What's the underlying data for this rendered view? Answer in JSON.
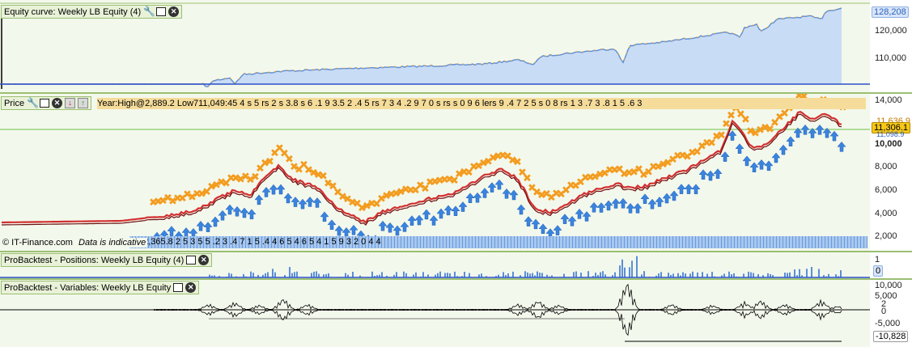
{
  "colors": {
    "pane_bg": "#f3f8ec",
    "equity_fill": "#c9dcf5",
    "equity_line": "#5b8ed8",
    "equity_accent": "#f0a030",
    "price_line_dark": "#6b1010",
    "price_line_red": "#d23030",
    "sell_marker": "#f39c1f",
    "buy_marker": "#3a84e0",
    "positions_bar": "#5b8ed8",
    "frame_green": "#9bbf72"
  },
  "equity_pane": {
    "title": "Equity curve: Weekly LB Equity (4)",
    "icons": [
      "wrench-icon",
      "maximize-icon",
      "close-icon"
    ],
    "last_value": "128,208",
    "ticks": [
      "120,000",
      "110,000"
    ]
  },
  "price_pane": {
    "title": "Price",
    "icons": [
      "wrench-icon",
      "maximize-icon",
      "close-icon",
      "move-down-icon",
      "move-up-icon"
    ],
    "info_text": "Year:High@2,889.2 Low711,049:45 4 s 5 rs 2 s 3.8 s 6 .1 9 3.5 2 .4 5 rs 7 3 4 .2 9 7 0 s rs s 0 9 6 lers 9 .4 7 2 5 s 0 8 rs 1 3 .7 3 .8 1 5 .6 3",
    "ticks": [
      "14,000",
      "10,000",
      "8,000",
      "6,000",
      "4,000",
      "2,000"
    ],
    "tag_upper": "11,636.9",
    "tag_lower": "11,306.1",
    "tag_mid": "11,098.9",
    "watermark": "© IT-Finance.com",
    "disclaimer": "Data is indicative",
    "low_text": "ff@2,365.8 2 5 3 5 5 .2 3 .4 7 1 5 .4 4 6 5 4 6 5 4 1 5 9 3 2 0 4 4"
  },
  "positions_pane": {
    "title": "ProBacktest - Positions: Weekly LB Equity (4)",
    "icons": [
      "maximize-icon",
      "close-icon"
    ],
    "ticks": [
      "1",
      "0"
    ]
  },
  "variables_pane": {
    "title": "ProBacktest - Variables: Weekly LB Equity",
    "icons": [
      "maximize-icon",
      "close-icon"
    ],
    "ticks": [
      "10,000",
      "5,000",
      "2",
      "0",
      "-5,000",
      "-10,828"
    ]
  }
}
